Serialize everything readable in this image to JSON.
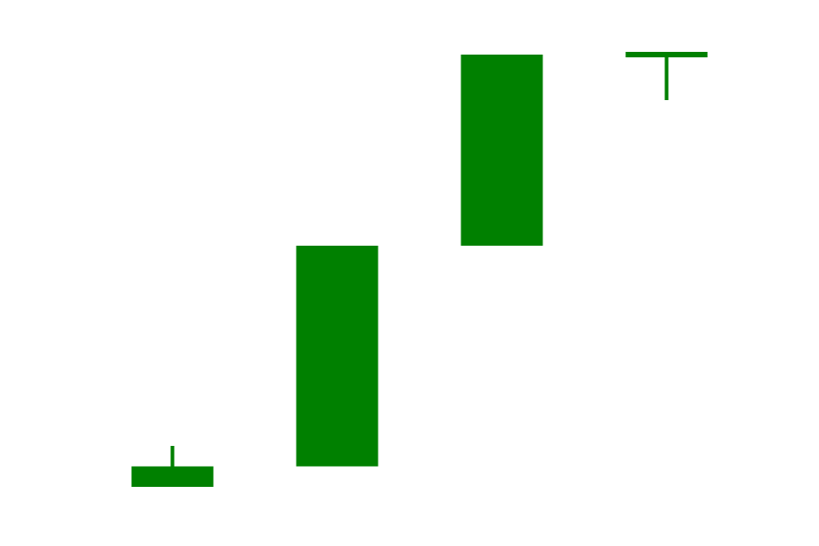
{
  "chart_data": {
    "type": "candlestick",
    "title": "",
    "xlabel": "",
    "ylabel": "",
    "grid": false,
    "legend": "none",
    "ylim": [
      0,
      100
    ],
    "colors": {
      "up": "#008000",
      "down": "#ff0000",
      "background": "#ffffff"
    },
    "candles": [
      {
        "open": 3.0,
        "close": 7.5,
        "high": 12.0,
        "low": 3.0
      },
      {
        "open": 7.5,
        "close": 56.0,
        "high": 56.0,
        "low": 7.5
      },
      {
        "open": 56.0,
        "close": 98.0,
        "high": 98.0,
        "low": 56.0
      },
      {
        "open": 98.0,
        "close": 98.0,
        "high": 98.0,
        "low": 88.0
      }
    ]
  }
}
